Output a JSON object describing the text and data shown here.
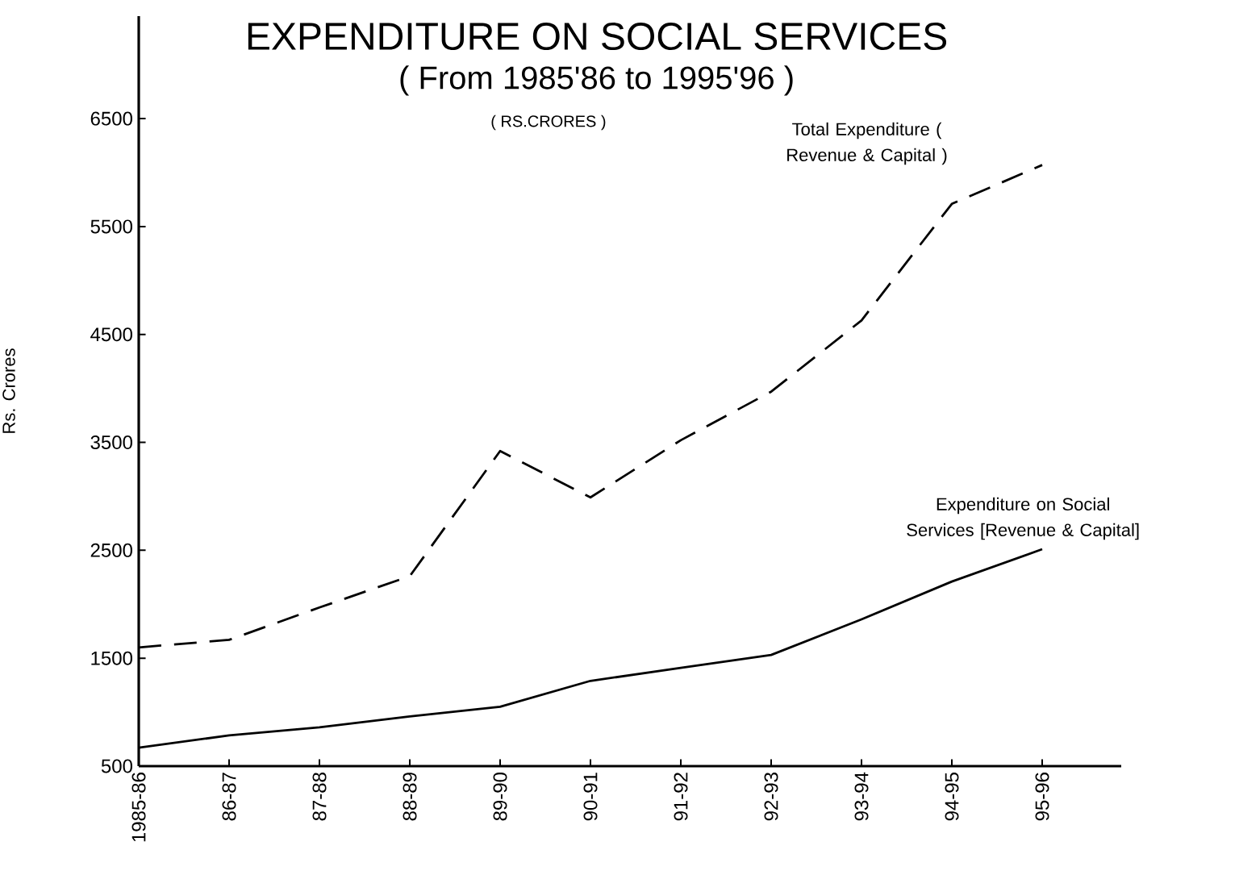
{
  "chart_data": {
    "type": "line",
    "title": "EXPENDITURE ON SOCIAL SERVICES",
    "subtitle": "( From 1985'86 to 1995'96 )",
    "annotations": [
      "( RS.CRORES )"
    ],
    "ylabel": "Rs. Crores",
    "categories": [
      "1985-86",
      "86-87",
      "87-88",
      "88-89",
      "89-90",
      "90-91",
      "91-92",
      "92-93",
      "93-94",
      "94-95",
      "95-96"
    ],
    "ylim": [
      500,
      7450
    ],
    "yticks": [
      500,
      1500,
      2500,
      3500,
      4500,
      5500,
      6500
    ],
    "grid": false,
    "legend": false,
    "series": [
      {
        "name": "Total Expenditure ( Revenue & Capital )",
        "color": "#000000",
        "line_style": "dashed",
        "values": [
          1600,
          1670,
          1970,
          2260,
          3420,
          2990,
          3520,
          3970,
          4630,
          5710,
          6070
        ]
      },
      {
        "name": "Expenditure on Social Services [Revenue & Capital]",
        "color": "#000000",
        "line_style": "solid",
        "values": [
          670,
          785,
          860,
          960,
          1050,
          1290,
          1410,
          1530,
          1860,
          2210,
          2510
        ]
      }
    ]
  }
}
